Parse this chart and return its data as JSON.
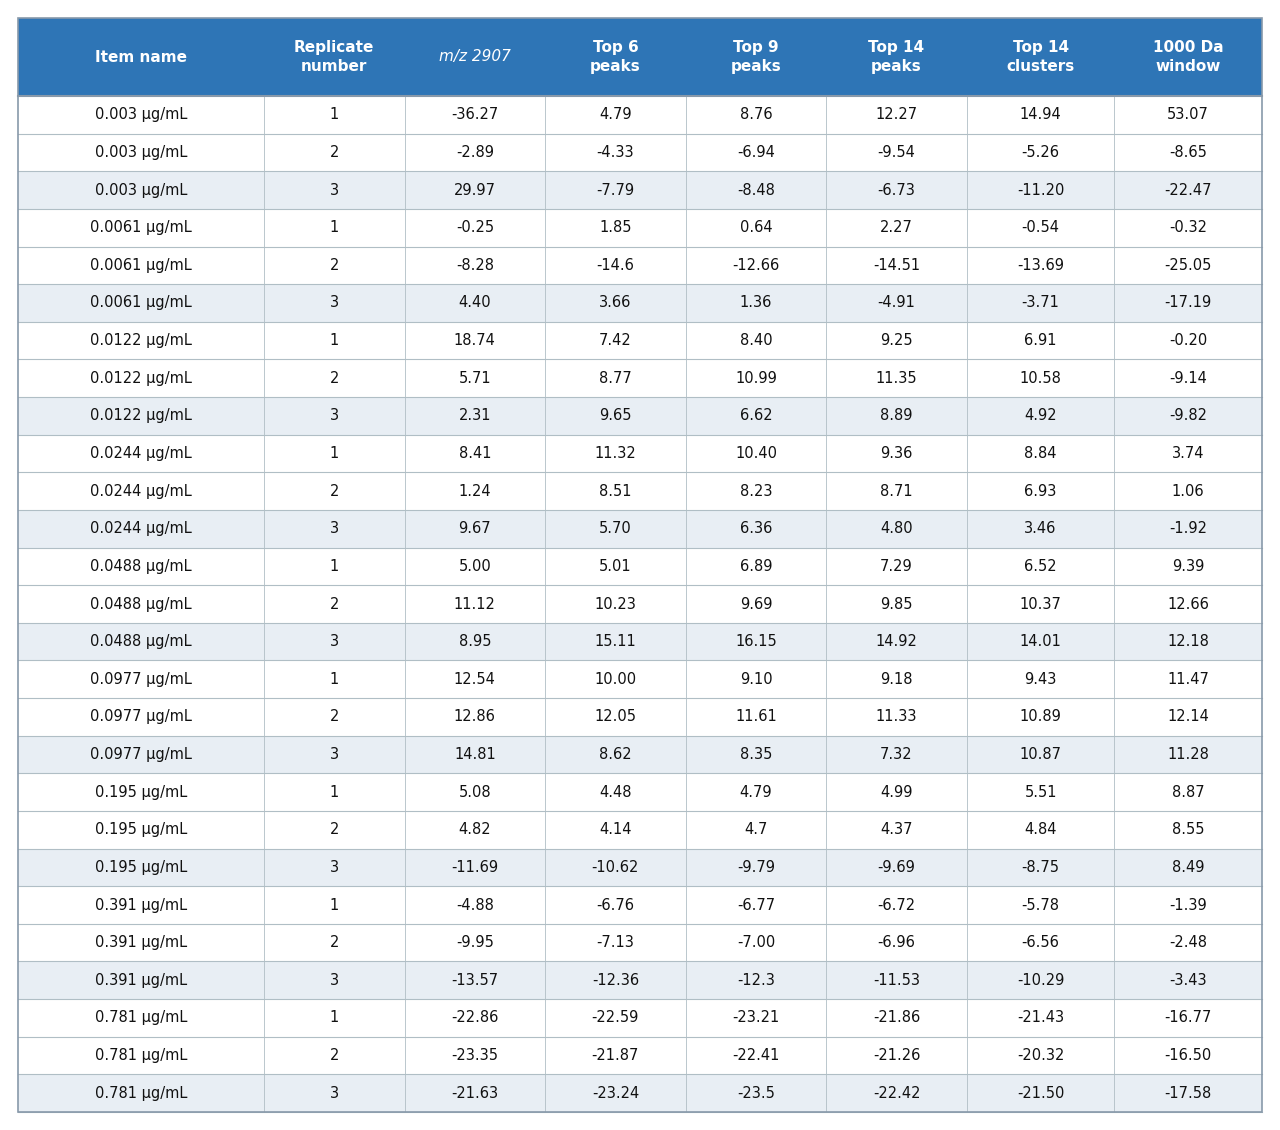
{
  "headers": [
    "Item name",
    "Replicate\nnumber",
    "m/z 2907",
    "Top 6\npeaks",
    "Top 9\npeaks",
    "Top 14\npeaks",
    "Top 14\nclusters",
    "1000 Da\nwindow"
  ],
  "header_color": "#2E75B6",
  "header_text_color": "#FFFFFF",
  "rows": [
    [
      "0.003 μg/mL",
      "1",
      "-36.27",
      "4.79",
      "8.76",
      "12.27",
      "14.94",
      "53.07"
    ],
    [
      "0.003 μg/mL",
      "2",
      "-2.89",
      "-4.33",
      "-6.94",
      "-9.54",
      "-5.26",
      "-8.65"
    ],
    [
      "0.003 μg/mL",
      "3",
      "29.97",
      "-7.79",
      "-8.48",
      "-6.73",
      "-11.20",
      "-22.47"
    ],
    [
      "0.0061 μg/mL",
      "1",
      "-0.25",
      "1.85",
      "0.64",
      "2.27",
      "-0.54",
      "-0.32"
    ],
    [
      "0.0061 μg/mL",
      "2",
      "-8.28",
      "-14.6",
      "-12.66",
      "-14.51",
      "-13.69",
      "-25.05"
    ],
    [
      "0.0061 μg/mL",
      "3",
      "4.40",
      "3.66",
      "1.36",
      "-4.91",
      "-3.71",
      "-17.19"
    ],
    [
      "0.0122 μg/mL",
      "1",
      "18.74",
      "7.42",
      "8.40",
      "9.25",
      "6.91",
      "-0.20"
    ],
    [
      "0.0122 μg/mL",
      "2",
      "5.71",
      "8.77",
      "10.99",
      "11.35",
      "10.58",
      "-9.14"
    ],
    [
      "0.0122 μg/mL",
      "3",
      "2.31",
      "9.65",
      "6.62",
      "8.89",
      "4.92",
      "-9.82"
    ],
    [
      "0.0244 μg/mL",
      "1",
      "8.41",
      "11.32",
      "10.40",
      "9.36",
      "8.84",
      "3.74"
    ],
    [
      "0.0244 μg/mL",
      "2",
      "1.24",
      "8.51",
      "8.23",
      "8.71",
      "6.93",
      "1.06"
    ],
    [
      "0.0244 μg/mL",
      "3",
      "9.67",
      "5.70",
      "6.36",
      "4.80",
      "3.46",
      "-1.92"
    ],
    [
      "0.0488 μg/mL",
      "1",
      "5.00",
      "5.01",
      "6.89",
      "7.29",
      "6.52",
      "9.39"
    ],
    [
      "0.0488 μg/mL",
      "2",
      "11.12",
      "10.23",
      "9.69",
      "9.85",
      "10.37",
      "12.66"
    ],
    [
      "0.0488 μg/mL",
      "3",
      "8.95",
      "15.11",
      "16.15",
      "14.92",
      "14.01",
      "12.18"
    ],
    [
      "0.0977 μg/mL",
      "1",
      "12.54",
      "10.00",
      "9.10",
      "9.18",
      "9.43",
      "11.47"
    ],
    [
      "0.0977 μg/mL",
      "2",
      "12.86",
      "12.05",
      "11.61",
      "11.33",
      "10.89",
      "12.14"
    ],
    [
      "0.0977 μg/mL",
      "3",
      "14.81",
      "8.62",
      "8.35",
      "7.32",
      "10.87",
      "11.28"
    ],
    [
      "0.195 μg/mL",
      "1",
      "5.08",
      "4.48",
      "4.79",
      "4.99",
      "5.51",
      "8.87"
    ],
    [
      "0.195 μg/mL",
      "2",
      "4.82",
      "4.14",
      "4.7",
      "4.37",
      "4.84",
      "8.55"
    ],
    [
      "0.195 μg/mL",
      "3",
      "-11.69",
      "-10.62",
      "-9.79",
      "-9.69",
      "-8.75",
      "8.49"
    ],
    [
      "0.391 μg/mL",
      "1",
      "-4.88",
      "-6.76",
      "-6.77",
      "-6.72",
      "-5.78",
      "-1.39"
    ],
    [
      "0.391 μg/mL",
      "2",
      "-9.95",
      "-7.13",
      "-7.00",
      "-6.96",
      "-6.56",
      "-2.48"
    ],
    [
      "0.391 μg/mL",
      "3",
      "-13.57",
      "-12.36",
      "-12.3",
      "-11.53",
      "-10.29",
      "-3.43"
    ],
    [
      "0.781 μg/mL",
      "1",
      "-22.86",
      "-22.59",
      "-23.21",
      "-21.86",
      "-21.43",
      "-16.77"
    ],
    [
      "0.781 μg/mL",
      "2",
      "-23.35",
      "-21.87",
      "-22.41",
      "-21.26",
      "-20.32",
      "-16.50"
    ],
    [
      "0.781 μg/mL",
      "3",
      "-21.63",
      "-23.24",
      "-23.5",
      "-22.42",
      "-21.50",
      "-17.58"
    ]
  ],
  "col_widths_rel": [
    1.75,
    1.0,
    1.0,
    1.0,
    1.0,
    1.0,
    1.05,
    1.05
  ],
  "header_italic_cols": [
    2
  ],
  "bg_color": "#FFFFFF",
  "row_color_white": "#FFFFFF",
  "row_color_light": "#E8EEF4",
  "divider_color": "#B0BEC5",
  "header_fontsize": 11,
  "row_fontsize": 10.5,
  "fig_width": 12.8,
  "fig_height": 11.3,
  "dpi": 100
}
